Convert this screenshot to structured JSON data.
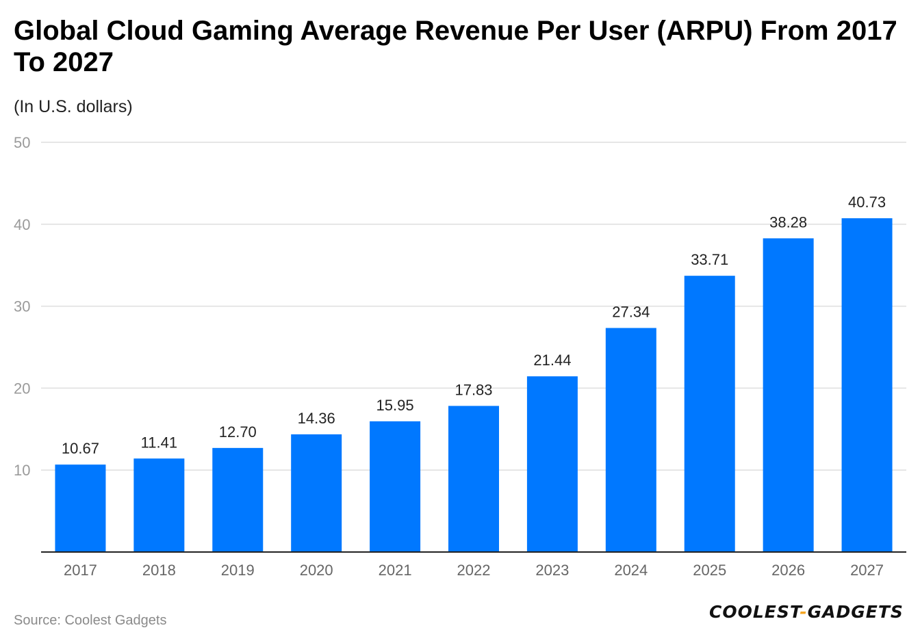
{
  "chart_data": {
    "type": "bar",
    "title": "Global Cloud Gaming Average Revenue Per User (ARPU) From 2017 To 2027",
    "subtitle": "(In U.S. dollars)",
    "xlabel": "",
    "ylabel": "",
    "ylim": [
      0,
      50
    ],
    "yticks": [
      10,
      20,
      30,
      40,
      50
    ],
    "grid": true,
    "categories": [
      "2017",
      "2018",
      "2019",
      "2020",
      "2021",
      "2022",
      "2023",
      "2024",
      "2025",
      "2026",
      "2027"
    ],
    "values": [
      10.67,
      11.41,
      12.7,
      14.36,
      15.95,
      17.83,
      21.44,
      27.34,
      33.71,
      38.28,
      40.73
    ],
    "value_labels": [
      "10.67",
      "11.41",
      "12.70",
      "14.36",
      "15.95",
      "17.83",
      "21.44",
      "27.34",
      "33.71",
      "38.28",
      "40.73"
    ],
    "bar_color": "#0078ff",
    "source": "Source: Coolest Gadgets"
  },
  "brand": {
    "part1": "COOLEST",
    "separator": "-",
    "part2": "GADGETS",
    "accent_color": "#f5a623"
  }
}
